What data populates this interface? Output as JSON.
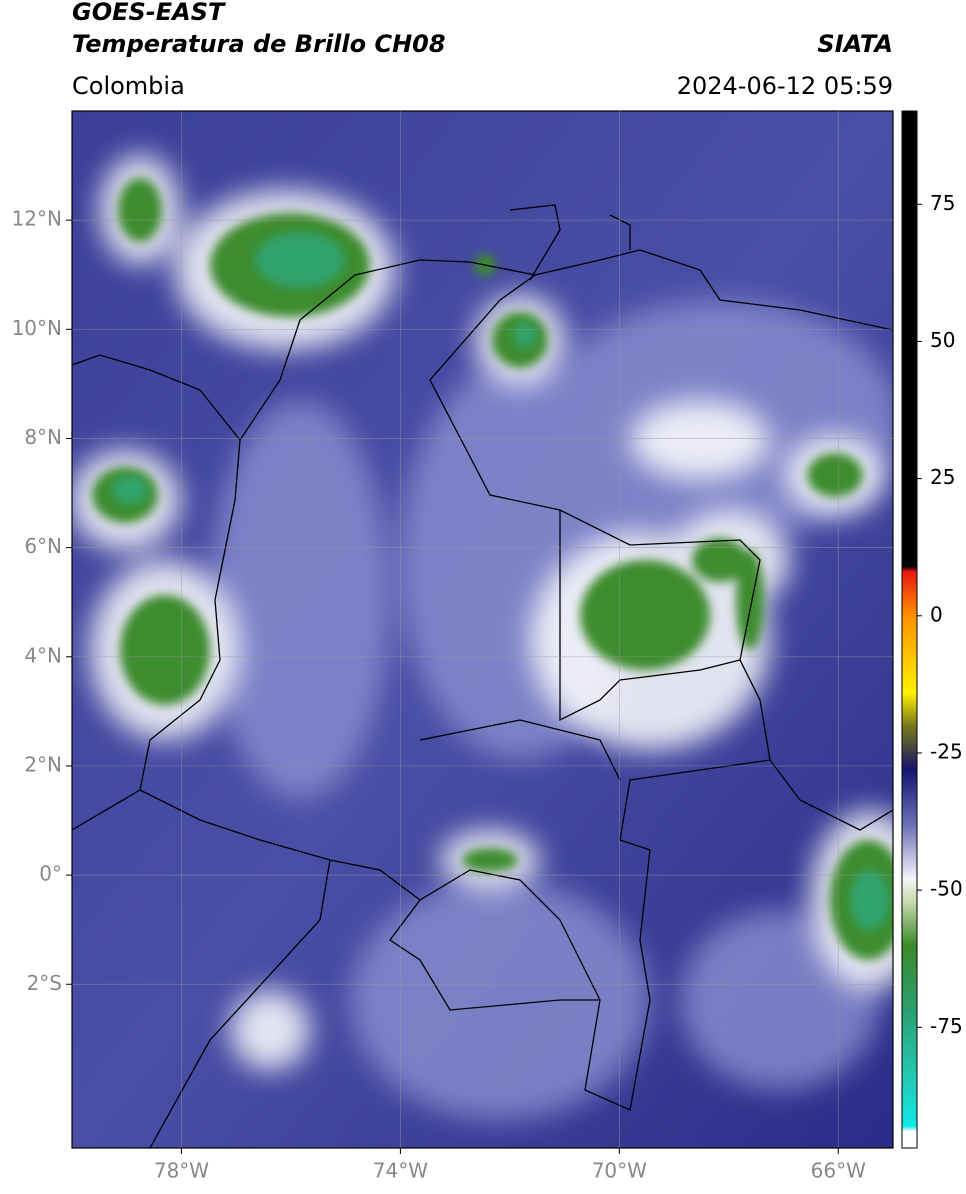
{
  "header": {
    "source": "GOES-EAST",
    "title": "Temperatura de Brillo CH08",
    "agency": "SIATA",
    "region": "Colombia",
    "datetime": "2024-06-12 05:59"
  },
  "map": {
    "lonlim": [
      -80,
      -65
    ],
    "latlim": [
      -5,
      14
    ],
    "lon_ticks": [
      {
        "value": -78,
        "label": "78°W"
      },
      {
        "value": -74,
        "label": "74°W"
      },
      {
        "value": -70,
        "label": "70°W"
      },
      {
        "value": -66,
        "label": "66°W"
      }
    ],
    "lat_ticks": [
      {
        "value": 12,
        "label": "12°N"
      },
      {
        "value": 10,
        "label": "10°N"
      },
      {
        "value": 8,
        "label": "8°N"
      },
      {
        "value": 6,
        "label": "6°N"
      },
      {
        "value": 4,
        "label": "4°N"
      },
      {
        "value": 2,
        "label": "2°N"
      },
      {
        "value": 0,
        "label": "0°"
      },
      {
        "value": -2,
        "label": "2°S"
      }
    ],
    "grid": true
  },
  "colorbar": {
    "lim": [
      -97,
      92
    ],
    "ticks": [
      75,
      50,
      25,
      0,
      -25,
      -50,
      -75
    ],
    "stops": [
      {
        "value": 92,
        "color": "#000000"
      },
      {
        "value": 9,
        "color": "#000000"
      },
      {
        "value": 8,
        "color": "#e8190f"
      },
      {
        "value": 0,
        "color": "#ff9000"
      },
      {
        "value": -14,
        "color": "#fff200"
      },
      {
        "value": -20,
        "color": "#7b7a1c"
      },
      {
        "value": -25,
        "color": "#3b3b45"
      },
      {
        "value": -28,
        "color": "#14146e"
      },
      {
        "value": -38,
        "color": "#6b6fb8"
      },
      {
        "value": -48,
        "color": "#f4f4f8"
      },
      {
        "value": -52,
        "color": "#c8dcb0"
      },
      {
        "value": -60,
        "color": "#3c8a2a"
      },
      {
        "value": -72,
        "color": "#2aa070"
      },
      {
        "value": -84,
        "color": "#24c8b4"
      },
      {
        "value": -93,
        "color": "#10e8e8"
      },
      {
        "value": -94,
        "color": "#ffffff"
      },
      {
        "value": -97,
        "color": "#ffffff"
      }
    ]
  }
}
